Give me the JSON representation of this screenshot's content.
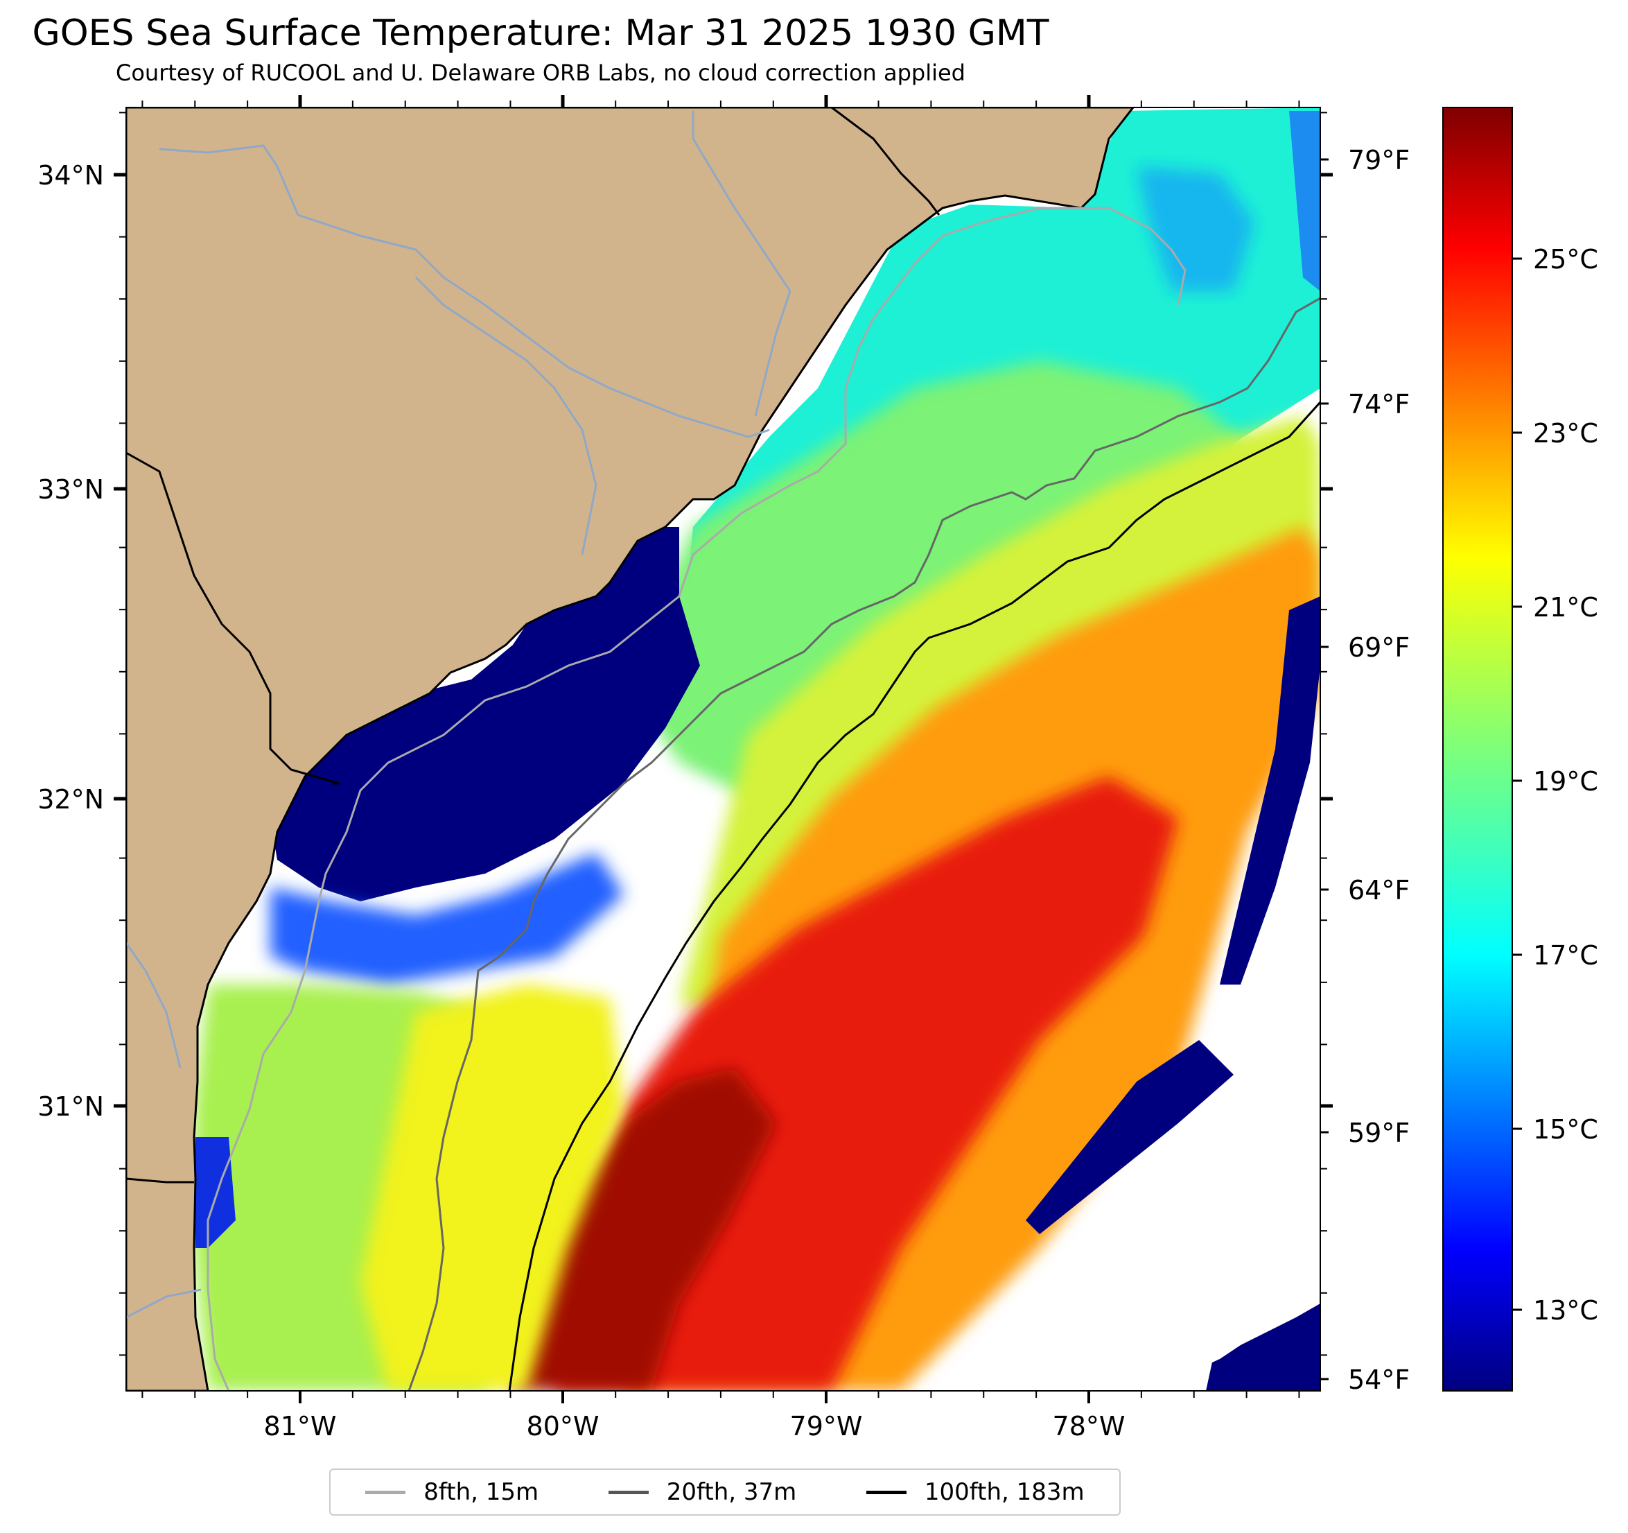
{
  "title": "GOES Sea Surface Temperature: Mar 31 2025 1930 GMT",
  "subtitle": "Courtesy of RUCOOL and U. Delaware ORB Labs, no cloud correction applied",
  "map": {
    "lon_range": [
      -81.67,
      -77.1
    ],
    "lat_range": [
      30.08,
      34.25
    ],
    "lon_ticks": [
      "81°W",
      "80°W",
      "79°W",
      "78°W"
    ],
    "lat_ticks": [
      "34°N",
      "33°N",
      "32°N",
      "31°N"
    ],
    "land_color": "#d2b48c",
    "coast_color": "#000000"
  },
  "colorbar": {
    "colormap": "jet",
    "range_c": [
      12.0,
      27.0
    ],
    "c_ticks": [
      "25°C",
      "23°C",
      "21°C",
      "19°C",
      "17°C",
      "15°C",
      "13°C"
    ],
    "f_ticks": [
      "79°F",
      "74°F",
      "69°F",
      "64°F",
      "59°F",
      "54°F"
    ]
  },
  "legend": [
    {
      "label": "8fth, 15m",
      "color": "#aaaaaa"
    },
    {
      "label": "20fth, 37m",
      "color": "#555555"
    },
    {
      "label": "100fth, 183m",
      "color": "#000000"
    }
  ]
}
